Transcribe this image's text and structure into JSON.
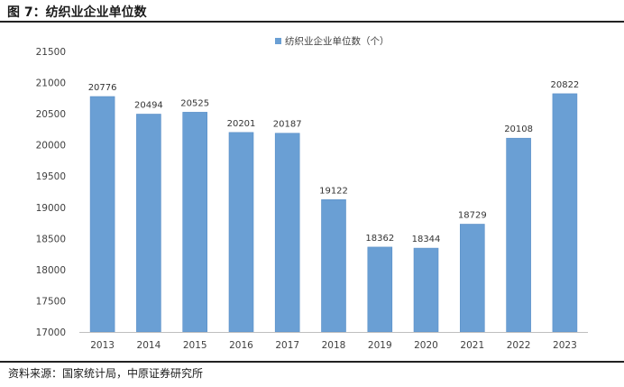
{
  "figure": {
    "title": "图 7：纺织业企业单位数",
    "source": "资料来源：国家统计局，中原证券研究所"
  },
  "colors": {
    "bar": "#6A9FD4",
    "bar_edge": "#5B8FC7",
    "axis": "#BFBFBF",
    "text": "#404040"
  },
  "chart_data": {
    "type": "bar",
    "title": "",
    "xlabel": "",
    "ylabel": "",
    "legend": {
      "position": "top-center",
      "entries": [
        "纺织业企业单位数（个）"
      ]
    },
    "categories": [
      "2013",
      "2014",
      "2015",
      "2016",
      "2017",
      "2018",
      "2019",
      "2020",
      "2021",
      "2022",
      "2023"
    ],
    "series": [
      {
        "name": "纺织业企业单位数（个）",
        "values": [
          20776,
          20494,
          20525,
          20201,
          20187,
          19122,
          18362,
          18344,
          18729,
          20108,
          20822
        ]
      }
    ],
    "ylim": [
      17000,
      21500
    ],
    "yticks": [
      17000,
      17500,
      18000,
      18500,
      19000,
      19500,
      20000,
      20500,
      21000,
      21500
    ],
    "grid": false,
    "data_labels": true
  }
}
